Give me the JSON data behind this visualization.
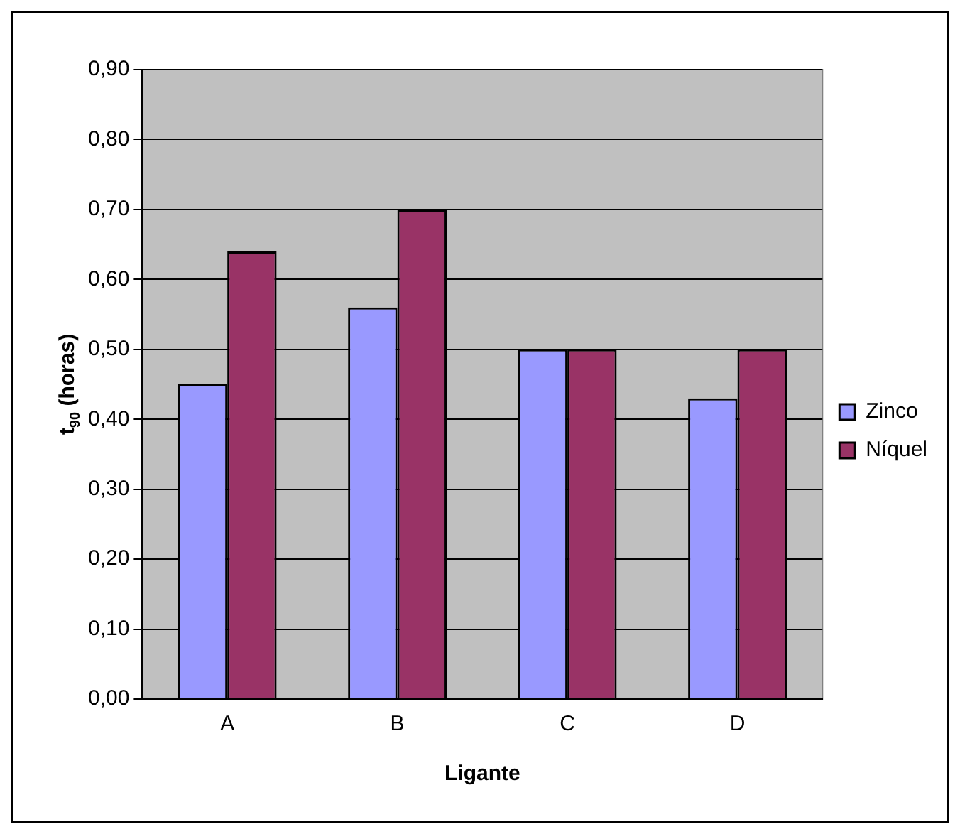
{
  "chart_data": {
    "type": "bar",
    "xlabel": "Ligante",
    "ylabel": "t$_{90}$ (horas)",
    "categories": [
      "A",
      "B",
      "C",
      "D"
    ],
    "series": [
      {
        "name": "Zinco",
        "color": "#9999ff",
        "values": [
          0.45,
          0.56,
          0.5,
          0.43
        ]
      },
      {
        "name": "Níquel",
        "color": "#993366",
        "values": [
          0.64,
          0.7,
          0.5,
          0.5
        ]
      }
    ],
    "ylim": [
      0,
      0.9
    ],
    "yticks": [
      {
        "value": 0,
        "label": "0,00"
      },
      {
        "value": 0.1,
        "label": "0,10"
      },
      {
        "value": 0.2,
        "label": "0,20"
      },
      {
        "value": 0.3,
        "label": "0,30"
      },
      {
        "value": 0.4,
        "label": "0,40"
      },
      {
        "value": 0.5,
        "label": "0,50"
      },
      {
        "value": 0.6,
        "label": "0,60"
      },
      {
        "value": 0.7,
        "label": "0,70"
      },
      {
        "value": 0.8,
        "label": "0,80"
      },
      {
        "value": 0.9,
        "label": "0,90"
      }
    ],
    "grid": "y",
    "legend": "right"
  }
}
